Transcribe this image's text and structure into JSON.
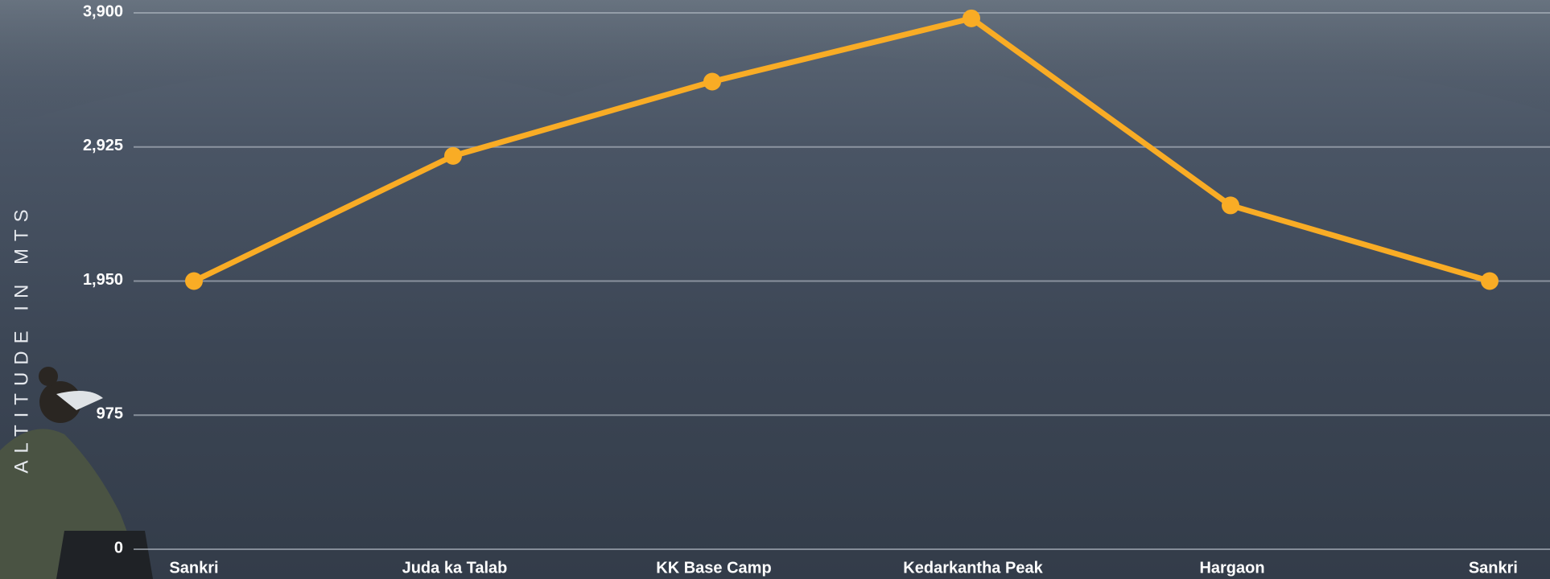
{
  "chart_data": {
    "type": "line",
    "y_axis_label": "ALTITUDE IN MTS",
    "categories": [
      "Sankri",
      "Juda ka Talab",
      "KK Base Camp",
      "Kedarkantha Peak",
      "Hargaon",
      "Sankri"
    ],
    "values": [
      1950,
      2860,
      3400,
      3860,
      2500,
      1950
    ],
    "color": "#f9ac25",
    "ylim": [
      0,
      3900
    ],
    "yticks": [
      0,
      975,
      {
        "value": 1950,
        "label": "1,950"
      },
      {
        "value": 2925,
        "label": "2,925"
      },
      {
        "value": 3900,
        "label": "3,900"
      }
    ],
    "grid": true
  }
}
